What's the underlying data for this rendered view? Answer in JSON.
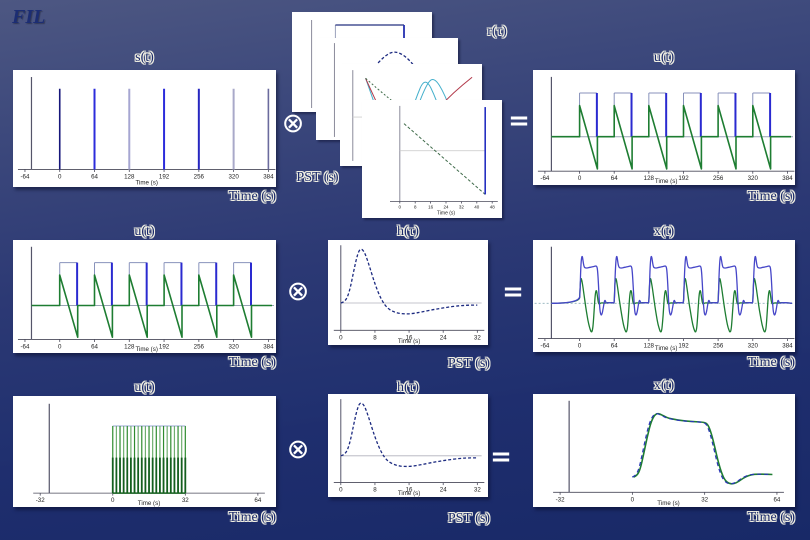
{
  "slide": {
    "logo": "FIL"
  },
  "operators": {
    "convolve": "⊗",
    "equals": "="
  },
  "labels": {
    "r1_left_title": "s(t)",
    "r1_mid_title": "r(τ)",
    "r1_right_title": "u(t)",
    "r1_left_sub": "Time (s)",
    "r1_mid_sub": "PST (s)",
    "r1_right_sub": "Time (s)",
    "r2_left_title": "u(t)",
    "r2_mid_title": "h(τ)",
    "r2_right_title": "x(t)",
    "r2_left_sub": "Time (s)",
    "r2_mid_sub": "PST (s)",
    "r2_right_sub": "Time (s)",
    "r3_left_title": "u(t)",
    "r3_mid_title": "h(τ)",
    "r3_right_title": "x(t)",
    "r3_left_sub": "Time (s)",
    "r3_mid_sub": "PST (s)",
    "r3_right_sub": "Time (s)"
  },
  "colors": {
    "background_top": "#4d5782",
    "background_bottom": "#182967",
    "panel": "#ffffff",
    "spike_blue": "#2c2cdb",
    "green": "#1e7d32",
    "hrf_navy": "#1c2a80",
    "cyan": "#45b0cc",
    "red": "#b2394a",
    "label_navy": "#1b2a6b",
    "label_outline": "#f0efe2"
  },
  "chart_data": [
    {
      "id": "s_t",
      "type": "stem",
      "title": "s(t)",
      "map": [
        -86,
        398
      ],
      "xticks": [
        -64,
        0,
        64,
        128,
        192,
        256,
        320,
        384
      ],
      "xlabel": "Time (s)",
      "axis_y": 0.85,
      "yaxis_x": -52,
      "yaxis_top": 0.06,
      "spike_top": 0.16,
      "spikes": [
        {
          "x": 0,
          "c": "#16167a",
          "w": 1.6
        },
        {
          "x": 64,
          "c": "#2c2cdb",
          "w": 2
        },
        {
          "x": 128,
          "c": "#a6a6d2",
          "w": 2
        },
        {
          "x": 192,
          "c": "#2c2cdb",
          "w": 2
        },
        {
          "x": 256,
          "c": "#2626c0",
          "w": 2
        },
        {
          "x": 320,
          "c": "#a9a9c9",
          "w": 2
        },
        {
          "x": 384,
          "c": "#6b6b9d",
          "w": 1.6
        }
      ]
    },
    {
      "id": "basis_card1",
      "type": "card1",
      "title": "r(τ) basis: boxcar",
      "yaxis_x": 0.14,
      "box_l": 0.31,
      "box_r": 0.8,
      "box_top": 0.13
    },
    {
      "id": "basis_card2",
      "type": "card2",
      "title": "r(τ) basis: half-sine",
      "yaxis_x": 0.13,
      "arc": [
        [
          0.2,
          0.95
        ],
        [
          0.28,
          0.62
        ],
        [
          0.38,
          0.33
        ],
        [
          0.5,
          0.15
        ],
        [
          0.58,
          0.13
        ],
        [
          0.68,
          0.24
        ],
        [
          0.78,
          0.47
        ],
        [
          0.88,
          0.76
        ],
        [
          0.94,
          0.94
        ]
      ]
    },
    {
      "id": "basis_card3",
      "type": "card3",
      "title": "r(τ) basis: set",
      "yaxis_x": 0.09,
      "baseline": 0.52,
      "series": [
        {
          "c": "#45b0cc",
          "pts": [
            [
              0.18,
              0.14
            ],
            [
              0.26,
              0.45
            ],
            [
              0.33,
              0.78
            ],
            [
              0.38,
              0.9
            ],
            [
              0.45,
              0.7
            ],
            [
              0.53,
              0.35
            ],
            [
              0.6,
              0.12
            ],
            [
              0.68,
              0.35
            ],
            [
              0.76,
              0.7
            ],
            [
              0.82,
              0.9
            ]
          ]
        },
        {
          "c": "#45b0cc",
          "pts": [
            [
              0.4,
              0.9
            ],
            [
              0.5,
              0.6
            ],
            [
              0.6,
              0.22
            ],
            [
              0.66,
              0.12
            ],
            [
              0.74,
              0.3
            ],
            [
              0.82,
              0.62
            ],
            [
              0.9,
              0.88
            ]
          ]
        },
        {
          "c": "#b2394a",
          "pts": [
            [
              0.18,
              0.14
            ],
            [
              0.28,
              0.45
            ],
            [
              0.38,
              0.72
            ],
            [
              0.46,
              0.82
            ],
            [
              0.56,
              0.68
            ],
            [
              0.68,
              0.45
            ],
            [
              0.8,
              0.28
            ],
            [
              0.93,
              0.13
            ]
          ]
        },
        {
          "c": "#3f6b4a",
          "dash": "2,2",
          "pts": [
            [
              0.18,
              0.14
            ],
            [
              0.35,
              0.35
            ],
            [
              0.55,
              0.55
            ],
            [
              0.72,
              0.72
            ],
            [
              0.8,
              0.82
            ]
          ]
        }
      ]
    },
    {
      "id": "basis_card4",
      "type": "card4",
      "title": "r(τ) basis: decay",
      "xlabel": "Time (s)",
      "yaxis_x": 0.27,
      "hline_y": 0.43,
      "diag": [
        [
          0.3,
          0.2
        ],
        [
          0.88,
          0.8
        ]
      ],
      "vline_x": 0.88,
      "axis_y": 0.86,
      "tick_labels": [
        "0",
        "8",
        "16",
        "24",
        "32",
        "40",
        "48"
      ]
    },
    {
      "id": "u_t_a",
      "type": "pulse",
      "title": "u(t)",
      "map": [
        -86,
        398
      ],
      "xticks": [
        -64,
        0,
        64,
        128,
        192,
        256,
        320,
        384
      ],
      "xlabel": "Time (s)",
      "axis_y": 0.88,
      "yaxis_x": -52,
      "baseline": 0.58,
      "box_top": 0.2,
      "ramp_top": 0.31,
      "ramp_bot": 0.86,
      "ramp_len": 33,
      "onsets": [
        0,
        64,
        128,
        192,
        256,
        320
      ],
      "width": 32,
      "box_color": "#8892bb",
      "edge_color": "#2a2ad0",
      "green": "#1e7d32"
    },
    {
      "id": "u_t_b",
      "type": "pulse",
      "title": "u(t)",
      "map": [
        -86,
        398
      ],
      "xticks": [
        -64,
        0,
        64,
        128,
        192,
        256,
        320,
        384
      ],
      "xlabel": "Time (s)",
      "axis_y": 0.88,
      "yaxis_x": -52,
      "baseline": 0.58,
      "box_top": 0.2,
      "ramp_top": 0.31,
      "ramp_bot": 0.86,
      "ramp_len": 33,
      "onsets": [
        0,
        64,
        128,
        192,
        256,
        320
      ],
      "width": 32,
      "box_color": "#8892bb",
      "edge_color": "#2a2ad0",
      "green": "#1e7d32"
    },
    {
      "id": "h_tau_a",
      "type": "hrf",
      "title": "h(τ)",
      "map": [
        -3,
        34.5
      ],
      "xticks": [
        0,
        8,
        16,
        24,
        32
      ],
      "xlabel": "Time (s)",
      "axis_y": 0.86,
      "baseline": 0.6,
      "color": "#1c2a80",
      "curve": [
        [
          0,
          0.6
        ],
        [
          1,
          0.59
        ],
        [
          2,
          0.5
        ],
        [
          3,
          0.3
        ],
        [
          4,
          0.12
        ],
        [
          4.7,
          0.08
        ],
        [
          5.5,
          0.11
        ],
        [
          6.5,
          0.22
        ],
        [
          8,
          0.42
        ],
        [
          9.5,
          0.57
        ],
        [
          11,
          0.655
        ],
        [
          13,
          0.695
        ],
        [
          15,
          0.705
        ],
        [
          17,
          0.7
        ],
        [
          19,
          0.685
        ],
        [
          22,
          0.66
        ],
        [
          25,
          0.64
        ],
        [
          28,
          0.625
        ],
        [
          30,
          0.62
        ],
        [
          32,
          0.62
        ]
      ]
    },
    {
      "id": "h_tau_b",
      "type": "hrf",
      "title": "h(τ)",
      "map": [
        -3,
        34.5
      ],
      "xticks": [
        0,
        8,
        16,
        24,
        32
      ],
      "xlabel": "Time (s)",
      "axis_y": 0.86,
      "baseline": 0.6,
      "color": "#1c2a80",
      "curve": [
        [
          0,
          0.6
        ],
        [
          1,
          0.59
        ],
        [
          2,
          0.5
        ],
        [
          3,
          0.3
        ],
        [
          4,
          0.12
        ],
        [
          4.7,
          0.08
        ],
        [
          5.5,
          0.11
        ],
        [
          6.5,
          0.22
        ],
        [
          8,
          0.42
        ],
        [
          9.5,
          0.57
        ],
        [
          11,
          0.655
        ],
        [
          13,
          0.695
        ],
        [
          15,
          0.705
        ],
        [
          17,
          0.7
        ],
        [
          19,
          0.685
        ],
        [
          22,
          0.66
        ],
        [
          25,
          0.64
        ],
        [
          28,
          0.625
        ],
        [
          30,
          0.62
        ],
        [
          32,
          0.62
        ]
      ]
    },
    {
      "id": "x_t_train",
      "type": "convtrain",
      "title": "x(t)",
      "map": [
        -86,
        398
      ],
      "xticks": [
        -64,
        0,
        64,
        128,
        192,
        256,
        320,
        384
      ],
      "xlabel": "Time (s)",
      "axis_y": 0.88,
      "yaxis_x": -52,
      "baseline": 0.565,
      "onsets": [
        0,
        64,
        128,
        192,
        256,
        320
      ],
      "blue_c": "#4646c8",
      "green_c": "#1e7d32",
      "base_c": "#8fb0ba",
      "blue_t": [
        [
          0,
          0.565
        ],
        [
          1,
          0.44
        ],
        [
          2,
          0.28
        ],
        [
          3.5,
          0.16
        ],
        [
          5,
          0.14
        ],
        [
          6.5,
          0.19
        ],
        [
          8,
          0.235
        ],
        [
          10,
          0.25
        ],
        [
          14,
          0.25
        ],
        [
          18,
          0.245
        ],
        [
          23,
          0.24
        ],
        [
          28,
          0.235
        ],
        [
          32,
          0.23
        ],
        [
          33.5,
          0.28
        ],
        [
          35,
          0.4
        ],
        [
          36.5,
          0.55
        ],
        [
          38,
          0.645
        ],
        [
          40,
          0.675
        ],
        [
          42,
          0.655
        ],
        [
          44,
          0.6
        ],
        [
          45.5,
          0.555
        ],
        [
          47,
          0.535
        ],
        [
          48.5,
          0.555
        ],
        [
          50,
          0.565
        ],
        [
          54,
          0.56
        ],
        [
          58,
          0.56
        ],
        [
          62,
          0.56
        ]
      ],
      "green_t": [
        [
          0,
          0.565
        ],
        [
          0.7,
          0.46
        ],
        [
          1.7,
          0.37
        ],
        [
          3,
          0.335
        ],
        [
          5,
          0.38
        ],
        [
          8,
          0.48
        ],
        [
          11,
          0.585
        ],
        [
          14,
          0.675
        ],
        [
          17,
          0.755
        ],
        [
          20,
          0.805
        ],
        [
          22,
          0.825
        ],
        [
          24,
          0.805
        ],
        [
          25.5,
          0.73
        ],
        [
          27,
          0.62
        ],
        [
          28.5,
          0.51
        ],
        [
          30,
          0.455
        ],
        [
          31.5,
          0.45
        ],
        [
          33,
          0.5
        ],
        [
          34.5,
          0.555
        ],
        [
          36,
          0.575
        ],
        [
          38,
          0.565
        ],
        [
          42,
          0.56
        ],
        [
          46,
          0.565
        ],
        [
          50,
          0.56
        ],
        [
          56,
          0.56
        ],
        [
          62,
          0.56
        ]
      ]
    },
    {
      "id": "u_dense",
      "type": "dense",
      "title": "u(t)",
      "map": [
        -44,
        72
      ],
      "xticks": [
        -32,
        0,
        32,
        64
      ],
      "xlabel": "Time (s)",
      "axis_y": 0.875,
      "yaxis_x": -28,
      "spike_top": 0.27,
      "half_y": 0.555,
      "range": [
        0,
        32
      ],
      "n": 21,
      "cap_color": "#97a6d6",
      "light": "#6fae6f",
      "mid": "#2e8b2e",
      "dark": "#145f1e"
    },
    {
      "id": "x_smooth",
      "type": "smooth",
      "title": "x(t)",
      "map": [
        -44,
        72
      ],
      "xticks": [
        -32,
        0,
        32,
        64
      ],
      "xlabel": "Time (s)",
      "axis_y": 0.87,
      "yaxis_x": -28,
      "green": "#1e7d32",
      "blue": "#2a35b8",
      "curve": [
        [
          0.5,
          0.735
        ],
        [
          2,
          0.725
        ],
        [
          3.5,
          0.665
        ],
        [
          5,
          0.53
        ],
        [
          6.5,
          0.385
        ],
        [
          8,
          0.265
        ],
        [
          9.5,
          0.195
        ],
        [
          11,
          0.17
        ],
        [
          12.5,
          0.18
        ],
        [
          14,
          0.195
        ],
        [
          16,
          0.215
        ],
        [
          20,
          0.23
        ],
        [
          24,
          0.24
        ],
        [
          28,
          0.245
        ],
        [
          32,
          0.25
        ],
        [
          33.5,
          0.27
        ],
        [
          35,
          0.35
        ],
        [
          36.5,
          0.47
        ],
        [
          38,
          0.6
        ],
        [
          39.5,
          0.7
        ],
        [
          41,
          0.765
        ],
        [
          43,
          0.795
        ],
        [
          45,
          0.795
        ],
        [
          47,
          0.775
        ],
        [
          49,
          0.745
        ],
        [
          51.5,
          0.72
        ],
        [
          54,
          0.71
        ],
        [
          58,
          0.71
        ],
        [
          62,
          0.712
        ]
      ]
    }
  ]
}
